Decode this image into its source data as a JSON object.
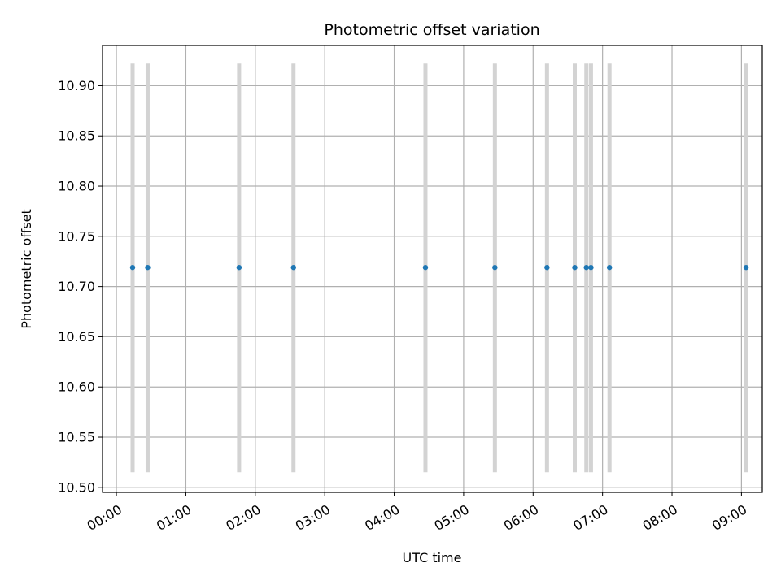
{
  "chart_data": {
    "type": "scatter",
    "title": "Photometric offset variation",
    "xlabel": "UTC time",
    "ylabel": "Photometric offset",
    "grid": true,
    "xlim_hours": [
      -0.2,
      9.3
    ],
    "ylim": [
      10.495,
      10.94
    ],
    "x_ticks": [
      "00:00",
      "01:00",
      "02:00",
      "03:00",
      "04:00",
      "05:00",
      "06:00",
      "07:00",
      "08:00",
      "09:00"
    ],
    "y_ticks": [
      "10.50",
      "10.55",
      "10.60",
      "10.65",
      "10.70",
      "10.75",
      "10.80",
      "10.85",
      "10.90"
    ],
    "colors": {
      "points": "#1f77b4",
      "bands": "#d3d3d3",
      "grid": "#b0b0b0"
    },
    "series": [
      {
        "x": [
          "00:14",
          "00:27",
          "01:46",
          "02:33",
          "04:27",
          "05:27",
          "06:12",
          "06:36",
          "06:46",
          "06:50",
          "07:06",
          "09:04"
        ],
        "y": [
          10.719,
          10.719,
          10.719,
          10.719,
          10.719,
          10.719,
          10.719,
          10.719,
          10.719,
          10.719,
          10.719,
          10.719
        ]
      }
    ],
    "bands": {
      "ymin": 10.515,
      "ymax": 10.922,
      "x": [
        "00:14",
        "00:27",
        "01:46",
        "02:33",
        "04:27",
        "05:27",
        "06:12",
        "06:36",
        "06:46",
        "06:50",
        "07:06",
        "09:04"
      ]
    }
  }
}
